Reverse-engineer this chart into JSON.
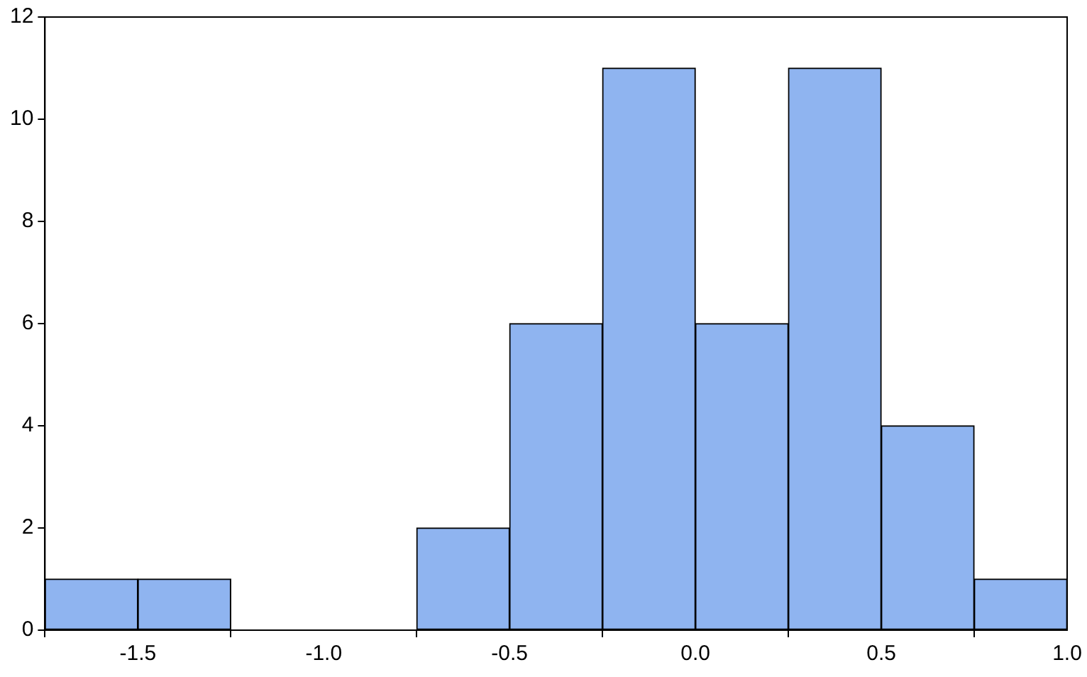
{
  "chart_data": {
    "type": "histogram",
    "bins": [
      -1.75,
      -1.5,
      -1.25,
      -1.0,
      -0.75,
      -0.5,
      -0.25,
      0.0,
      0.25,
      0.5,
      0.75,
      1.0
    ],
    "values": [
      1,
      1,
      0,
      0,
      2,
      6,
      11,
      6,
      11,
      4,
      1
    ],
    "color": "#8fb4f0",
    "xlim": [
      -1.75,
      1.0
    ],
    "xticks": [
      {
        "value": -1.5,
        "label": "-1.5"
      },
      {
        "value": -1.0,
        "label": "-1.0"
      },
      {
        "value": -0.5,
        "label": "-0.5"
      },
      {
        "value": 0.0,
        "label": "0.0"
      },
      {
        "value": 0.5,
        "label": "0.5"
      },
      {
        "value": 1.0,
        "label": "1.0"
      }
    ],
    "ylim": [
      0,
      12
    ],
    "yticks": [
      0,
      2,
      4,
      6,
      8,
      10,
      12
    ],
    "grid": false
  }
}
